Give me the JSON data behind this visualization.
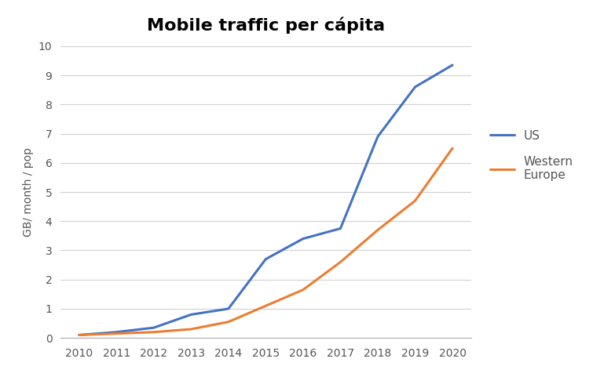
{
  "title": "Mobile traffic per cápita",
  "ylabel": "GB/ month / pop",
  "years": [
    2010,
    2011,
    2012,
    2013,
    2014,
    2015,
    2016,
    2017,
    2018,
    2019,
    2020
  ],
  "us_values": [
    0.1,
    0.2,
    0.35,
    0.8,
    1.0,
    2.7,
    3.4,
    3.75,
    6.9,
    8.6,
    9.35
  ],
  "we_values": [
    0.1,
    0.15,
    0.2,
    0.3,
    0.55,
    1.1,
    1.65,
    2.6,
    3.7,
    4.7,
    6.5
  ],
  "us_color": "#4472C4",
  "we_color": "#ED7D31",
  "us_label": "US",
  "we_label": "Western\nEurope",
  "ylim": [
    0,
    10
  ],
  "yticks": [
    0,
    1,
    2,
    3,
    4,
    5,
    6,
    7,
    8,
    9,
    10
  ],
  "line_width": 2.2,
  "background_color": "#ffffff",
  "grid_color": "#d0d0d0",
  "title_fontsize": 16,
  "label_fontsize": 10,
  "tick_fontsize": 10,
  "legend_fontsize": 11,
  "axis_color": "#aaaaaa"
}
